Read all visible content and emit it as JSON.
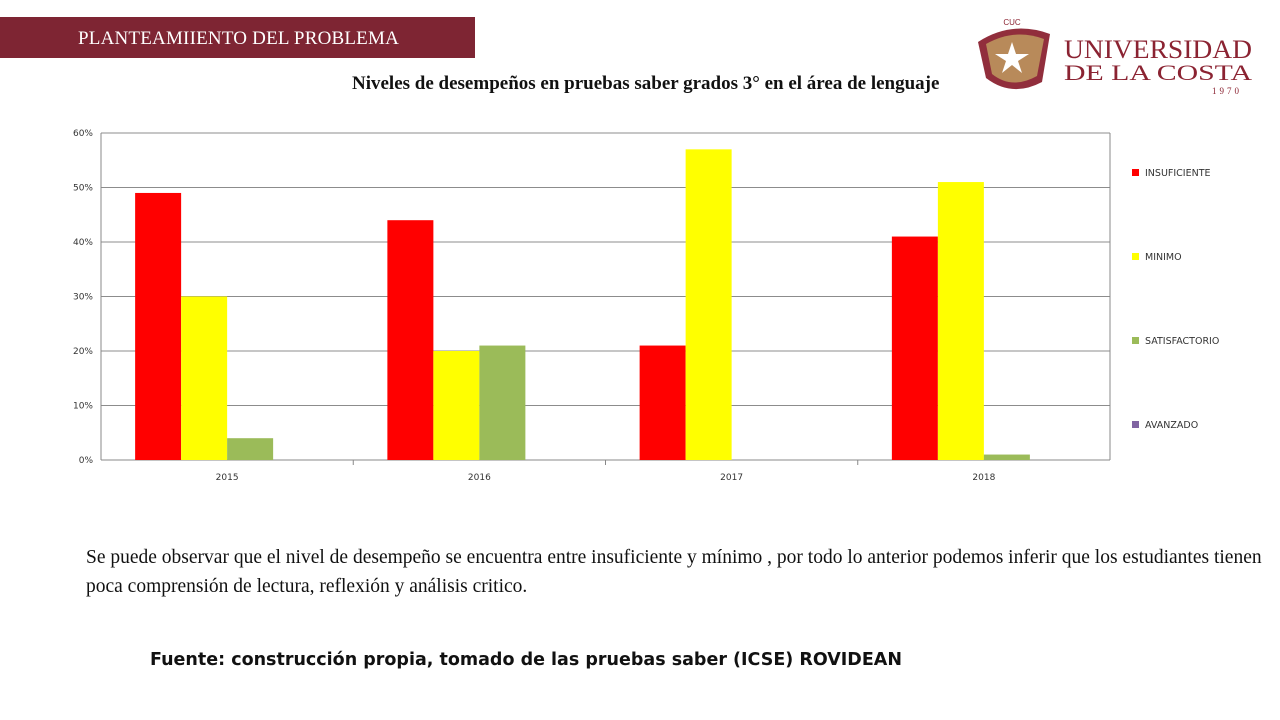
{
  "banner": {
    "title": "PLANTEAMIIENTO DEL PROBLEMA",
    "color": "#7e2533"
  },
  "logo": {
    "badge_text": "CUC",
    "line1": "UNIVERSIDAD",
    "line2": "DE LA COSTA",
    "year": "1970",
    "color": "#8b2332"
  },
  "chart_data": {
    "type": "bar",
    "title": "Niveles de desempeños en  pruebas saber grados 3°  en el área de  lenguaje",
    "categories": [
      "2015",
      "2016",
      "2017",
      "2018"
    ],
    "series": [
      {
        "name": "INSUFICIENTE",
        "color": "#ff0000",
        "values": [
          0.49,
          0.44,
          0.21,
          0.41
        ]
      },
      {
        "name": "MINIMO",
        "color": "#ffff00",
        "values": [
          0.3,
          0.2,
          0.57,
          0.51
        ]
      },
      {
        "name": "SATISFACTORIO",
        "color": "#9bbb59",
        "values": [
          0.04,
          0.21,
          0,
          0.01
        ]
      },
      {
        "name": "AVANZADO",
        "color": "#8064a2",
        "values": [
          0,
          0,
          0,
          0
        ]
      }
    ],
    "yticks": [
      "0%",
      "10%",
      "20%",
      "30%",
      "40%",
      "50%",
      "60%"
    ],
    "ylim": [
      0,
      0.6
    ],
    "grid": true,
    "legend_position": "right"
  },
  "text": {
    "observation": "Se puede observar que el nivel de desempeño se encuentra entre insuficiente  y mínimo , por todo lo anterior podemos inferir que los estudiantes  tienen poca  comprensión de lectura, reflexión y análisis critico.",
    "source": "Fuente: construcción propia, tomado de las pruebas saber (ICSE) ROVIDEAN"
  }
}
